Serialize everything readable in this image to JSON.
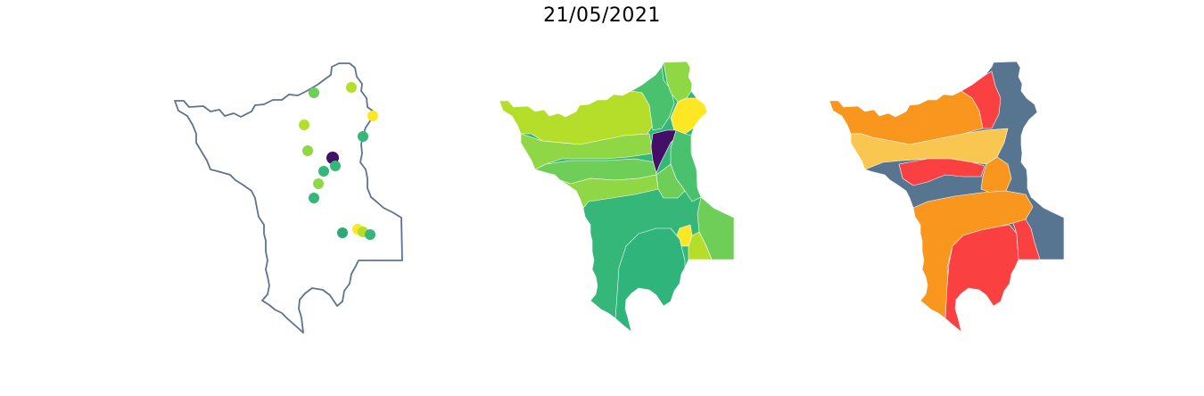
{
  "title": "21/05/2021",
  "colors": {
    "outline": "#5b7390",
    "viridis": [
      "#440f66",
      "#fde725",
      "#35b779",
      "#6ece58",
      "#b5de2b",
      "#1f9e89"
    ],
    "status": [
      "#fa4040",
      "#f8961e",
      "#f9c74f",
      "#577590"
    ]
  },
  "maps": [
    {
      "name": "stations",
      "kind": "point-map"
    },
    {
      "name": "basins-viridis",
      "kind": "choropleth"
    },
    {
      "name": "basins-status",
      "kind": "choropleth"
    }
  ]
}
